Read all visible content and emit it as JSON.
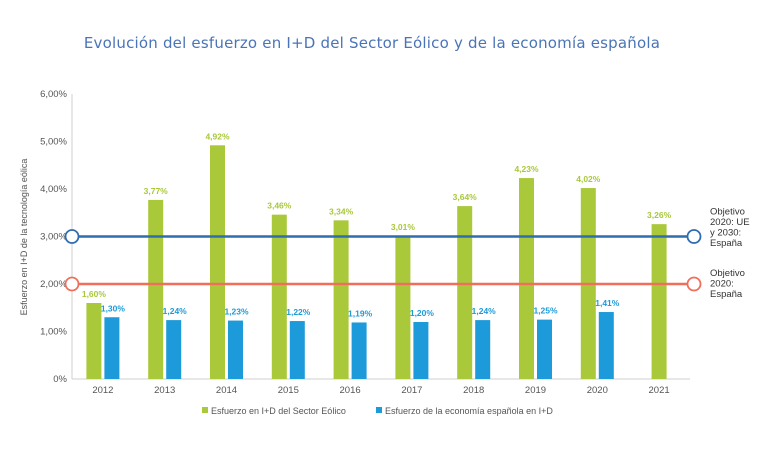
{
  "chart_data": {
    "type": "bar",
    "title": "Evolución del esfuerzo en I+D del Sector Eólico y de la economía española",
    "ylabel": "Esfuerzo en I+D de la tecnología eólica",
    "xlabel": "",
    "ylim": [
      0,
      6
    ],
    "yticks": [
      0,
      1,
      2,
      3,
      4,
      5,
      6
    ],
    "ytick_labels": [
      "0%",
      "1,00%",
      "2,00%",
      "3,00%",
      "4,00%",
      "5,00%",
      "6,00%"
    ],
    "categories": [
      "2012",
      "2013",
      "2014",
      "2015",
      "2016",
      "2017",
      "2018",
      "2019",
      "2020",
      "2021"
    ],
    "series": [
      {
        "name": "Esfuerzo en I+D del Sector Eólico",
        "color": "#a9c83a",
        "values": [
          1.6,
          3.77,
          4.92,
          3.46,
          3.34,
          3.01,
          3.64,
          4.23,
          4.02,
          3.26
        ],
        "labels": [
          "1,60%",
          "3,77%",
          "4,92%",
          "3,46%",
          "3,34%",
          "3,01%",
          "3,64%",
          "4,23%",
          "4,02%",
          "3,26%"
        ]
      },
      {
        "name": "Esfuerzo de la economía española en I+D",
        "color": "#1d9ad9",
        "values": [
          1.3,
          1.24,
          1.23,
          1.22,
          1.19,
          1.2,
          1.24,
          1.25,
          1.41,
          null
        ],
        "labels": [
          "1,30%",
          "1,24%",
          "1,23%",
          "1,22%",
          "1,19%",
          "1,20%",
          "1,24%",
          "1,25%",
          "1,41%",
          ""
        ]
      }
    ],
    "reference_lines": [
      {
        "value": 3.0,
        "color": "#2f6db0",
        "label_lines": [
          "Objetivo",
          "2020: UE",
          "y 2030:",
          "España"
        ]
      },
      {
        "value": 2.0,
        "color": "#ef6f5a",
        "label_lines": [
          "Objetivo",
          "2020:",
          "España"
        ]
      }
    ],
    "legend_position": "bottom"
  }
}
